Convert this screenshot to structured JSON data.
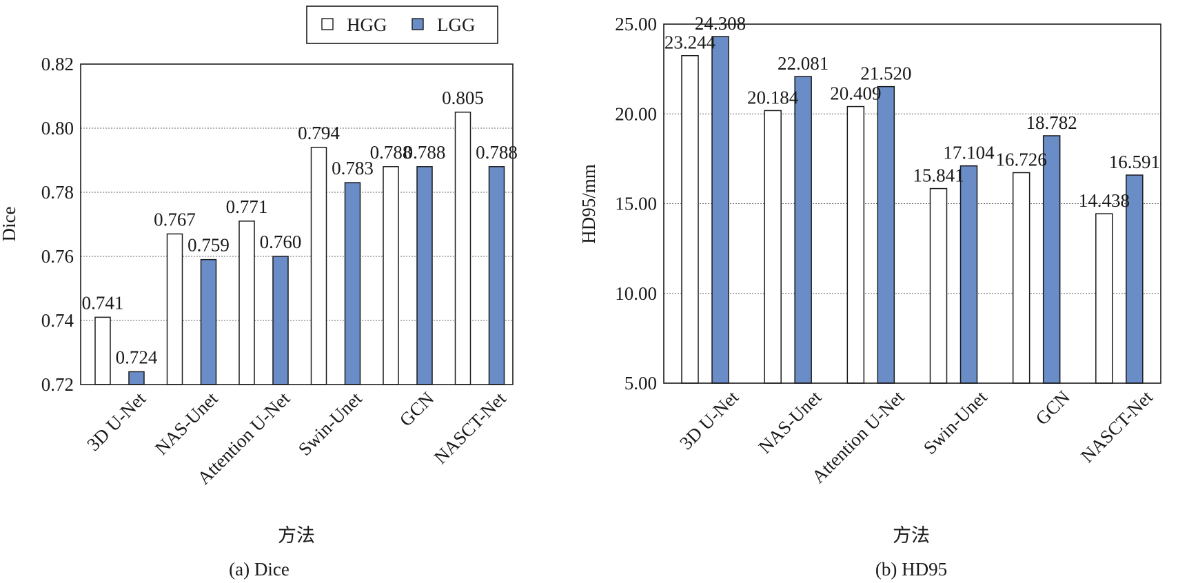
{
  "chart_data": [
    {
      "type": "bar",
      "categories": [
        "3D U-Net",
        "NAS-Unet",
        "Attention U-Net",
        "Swin-Unet",
        "GCN",
        "NASCT-Net"
      ],
      "series": [
        {
          "name": "HGG",
          "values": [
            0.741,
            0.767,
            0.771,
            0.794,
            0.788,
            0.805
          ],
          "labels": [
            "0.741",
            "0.767",
            "0.771",
            "0.794",
            "0.788",
            "0.805"
          ]
        },
        {
          "name": "LGG",
          "values": [
            0.724,
            0.759,
            0.76,
            0.783,
            0.788,
            0.788
          ],
          "labels": [
            "0.724",
            "0.759",
            "0.760",
            "0.783",
            "0.788",
            "0.788"
          ]
        }
      ],
      "xlabel": "方法",
      "ylabel": "Dice",
      "caption": "(a) Dice",
      "ylim": [
        0.72,
        0.82
      ],
      "yticks": [
        "0.72",
        "0.74",
        "0.76",
        "0.78",
        "0.80",
        "0.82"
      ],
      "grid": true,
      "legend": "top-right"
    },
    {
      "type": "bar",
      "categories": [
        "3D U-Net",
        "NAS-Unet",
        "Attention U-Net",
        "Swin-Unet",
        "GCN",
        "NASCT-Net"
      ],
      "series": [
        {
          "name": "HGG",
          "values": [
            23.244,
            20.184,
            20.409,
            15.841,
            16.726,
            14.438
          ],
          "labels": [
            "23.244",
            "20.184",
            "20.409",
            "15.841",
            "16.726",
            "14.438"
          ]
        },
        {
          "name": "LGG",
          "values": [
            24.308,
            22.081,
            21.52,
            17.104,
            18.782,
            16.591
          ],
          "labels": [
            "24.308",
            "22.081",
            "21.520",
            "17.104",
            "18.782",
            "16.591"
          ]
        }
      ],
      "xlabel": "方法",
      "ylabel": "HD95/mm",
      "caption": "(b) HD95",
      "ylim": [
        5,
        25
      ],
      "yticks": [
        "5.00",
        "10.00",
        "15.00",
        "20.00",
        "25.00"
      ],
      "grid": true
    }
  ],
  "legend": {
    "items": [
      {
        "label": "HGG",
        "color": "#ffffff"
      },
      {
        "label": "LGG",
        "color": "#6a8cc7"
      }
    ]
  },
  "colors": {
    "hgg": "#ffffff",
    "lgg": "#6a8cc7",
    "stroke": "#1a1a1a"
  }
}
